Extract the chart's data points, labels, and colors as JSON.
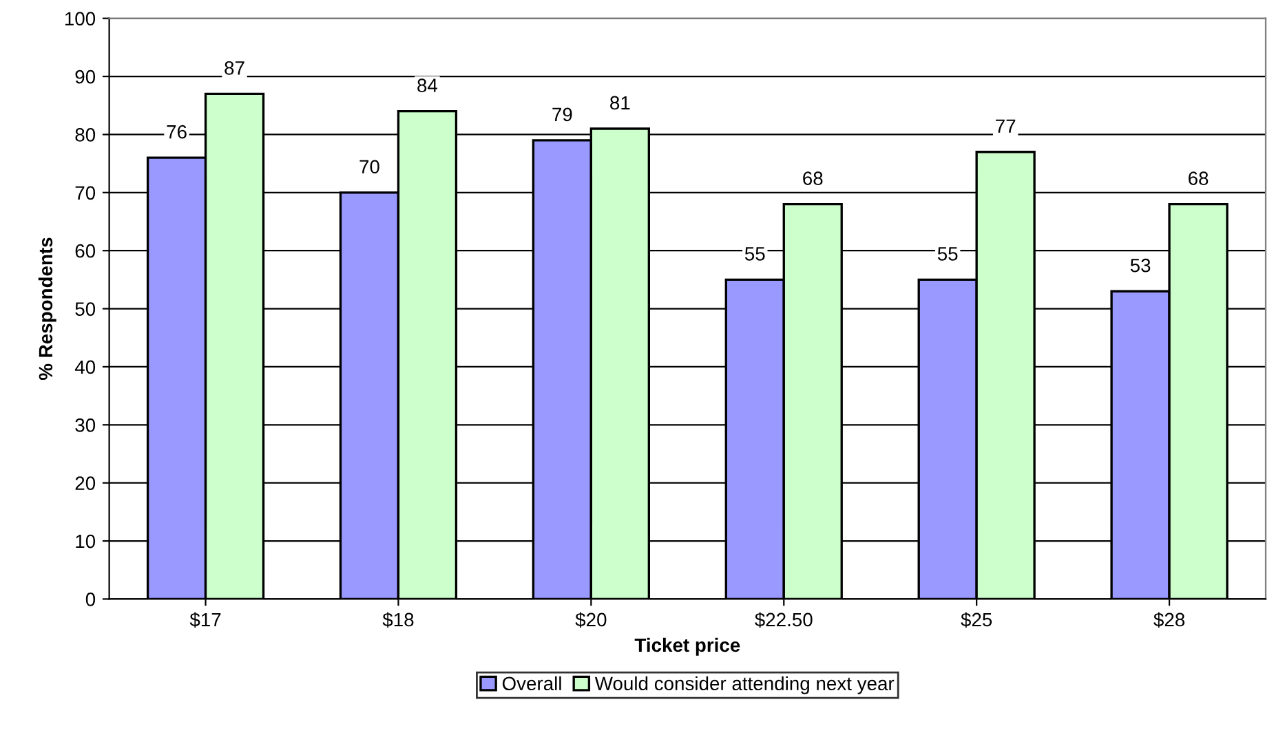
{
  "chart_data": {
    "type": "bar",
    "xlabel": "Ticket price",
    "ylabel": "% Respondents",
    "categories": [
      "$17",
      "$18",
      "$20",
      "$22.50",
      "$25",
      "$28"
    ],
    "series": [
      {
        "name": "Overall",
        "color": "#9999ff",
        "values": [
          76,
          70,
          79,
          55,
          55,
          53
        ]
      },
      {
        "name": "Would consider attending next year",
        "color": "#ccffcc",
        "values": [
          87,
          84,
          81,
          68,
          77,
          68
        ]
      }
    ],
    "ylim": [
      0,
      100
    ],
    "yticks": [
      0,
      10,
      20,
      30,
      40,
      50,
      60,
      70,
      80,
      90,
      100
    ],
    "grid": "y",
    "legend": "bottom",
    "data_labels": true
  }
}
